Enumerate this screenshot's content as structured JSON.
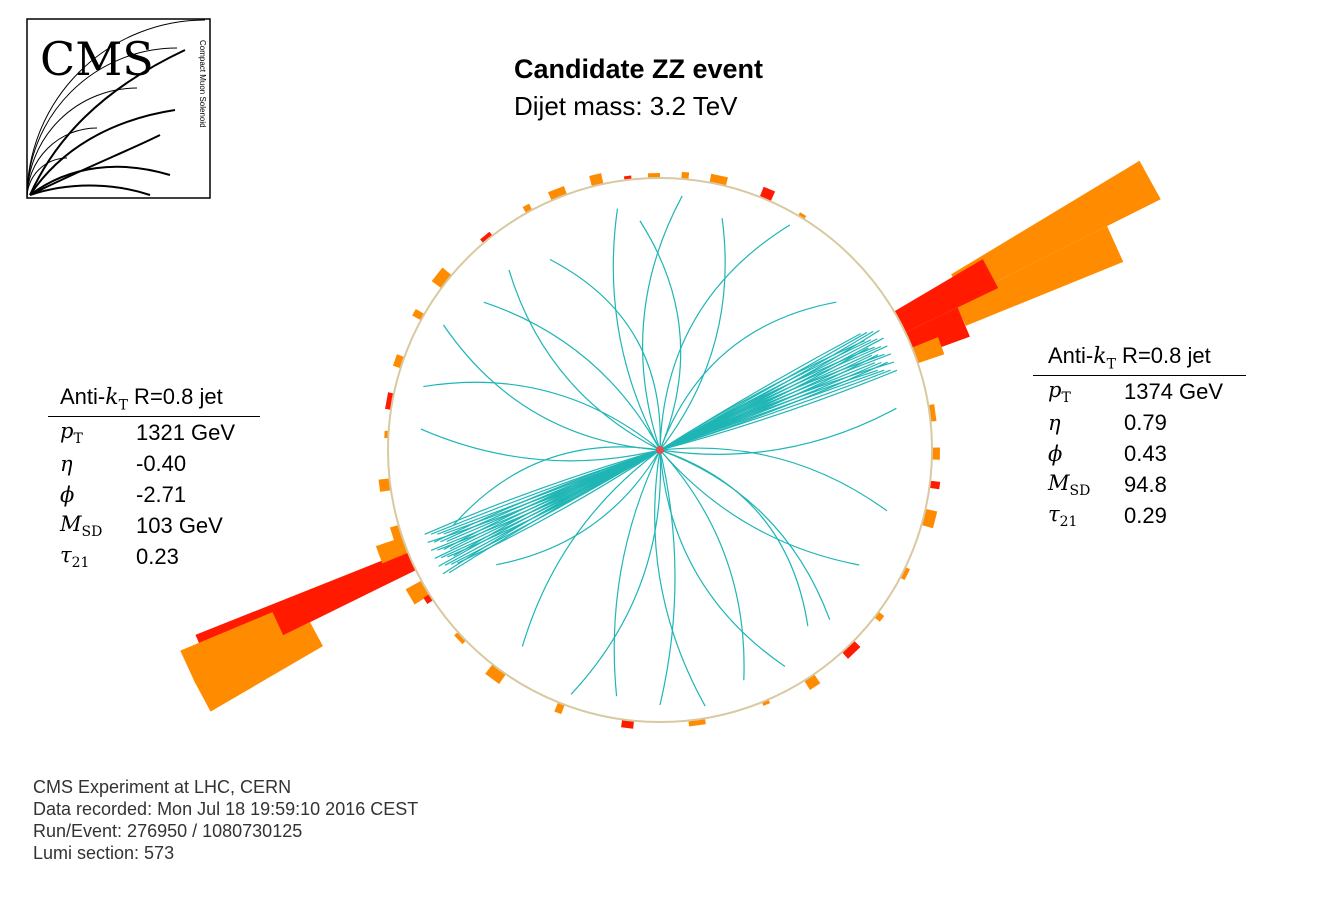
{
  "event": {
    "title": "Candidate ZZ event",
    "subtitle": "Dijet mass: 3.2 TeV"
  },
  "logo": {
    "text": "CMS",
    "tagline": "Compact Muon Solenoid"
  },
  "jets": {
    "left": {
      "header_prefix": "Anti-",
      "header_k": "k",
      "header_k_sub": "T",
      "header_suffix": " R=0.8 jet",
      "pt_symbol": "p",
      "pt_sub": "T",
      "pt_value": "1321 GeV",
      "eta_symbol": "η",
      "eta_value": "-0.40",
      "phi_symbol": "ϕ",
      "phi_value": "-2.71",
      "msd_symbol": "M",
      "msd_sub": "SD",
      "msd_value": "103 GeV",
      "tau_symbol": "τ",
      "tau_sub": "21",
      "tau_value": "0.23"
    },
    "right": {
      "header_prefix": "Anti-",
      "header_k": "k",
      "header_k_sub": "T",
      "header_suffix": " R=0.8 jet",
      "pt_symbol": "p",
      "pt_sub": "T",
      "pt_value": "1374 GeV",
      "eta_symbol": "η",
      "eta_value": "0.79",
      "phi_symbol": "ϕ",
      "phi_value": "0.43",
      "msd_symbol": "M",
      "msd_sub": "SD",
      "msd_value": "94.8",
      "tau_symbol": "τ",
      "tau_sub": "21",
      "tau_value": "0.29"
    }
  },
  "info": {
    "experiment": "CMS Experiment at LHC, CERN",
    "recorded": "Data recorded: Mon Jul 18 19:59:10 2016 CEST",
    "run_event": "Run/Event: 276950 / 1080730125",
    "lumi": "Lumi section: 573"
  },
  "colors": {
    "track": "#1fb5b5",
    "ecal": "#ff1a00",
    "hcal": "#ff8c00",
    "detector_ring": "#d8c9a0",
    "vertex": "#e05050"
  },
  "display": {
    "jet_left_phi_deg": -155.3,
    "jet_right_phi_deg": 24.6,
    "jet_left_tracks": 22,
    "jet_right_tracks": 24,
    "other_tracks": 26
  }
}
